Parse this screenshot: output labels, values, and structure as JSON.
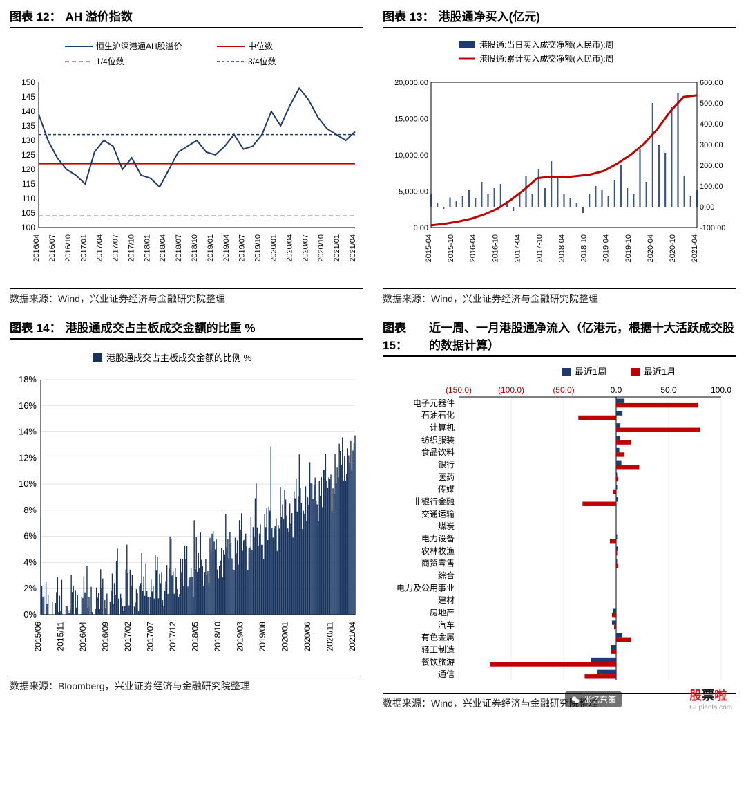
{
  "chart12": {
    "title_prefix": "图表 12：",
    "title": "AH 溢价指数",
    "source": "数据来源：Wind，兴业证券经济与金融研究院整理",
    "legend": {
      "series": "恒生沪深港通AH股溢价",
      "median": "中位数",
      "q1": "1/4位数",
      "q3": "3/4位数"
    },
    "colors": {
      "series": "#1f3a6e",
      "median": "#c00000",
      "q1": "#7f7f7f",
      "q3": "#1f3a6e",
      "axis": "#000000",
      "grid": "#bfbfbf"
    },
    "ylim": [
      100,
      150
    ],
    "ytick_step": 5,
    "median_value": 122,
    "q1_value": 104,
    "q3_value": 132,
    "x_labels": [
      "2016/04",
      "2016/07",
      "2016/10",
      "2017/01",
      "2017/04",
      "2017/07",
      "2017/10",
      "2018/01",
      "2018/04",
      "2018/07",
      "2018/10",
      "2019/01",
      "2019/04",
      "2019/07",
      "2019/10",
      "2020/01",
      "2020/04",
      "2020/07",
      "2020/10",
      "2021/01",
      "2021/04"
    ],
    "series_values": [
      139,
      130,
      124,
      120,
      118,
      115,
      126,
      130,
      128,
      120,
      124,
      118,
      117,
      114,
      120,
      126,
      128,
      130,
      126,
      125,
      128,
      132,
      127,
      128,
      132,
      140,
      135,
      142,
      148,
      144,
      138,
      134,
      132,
      130,
      133
    ]
  },
  "chart13": {
    "title_prefix": "图表 13：",
    "title": "港股通净买入(亿元)",
    "source": "数据来源：Wind，兴业证券经济与金融研究院整理",
    "legend": {
      "bars": "港股通:当日买入成交净额(人民币):周",
      "line": "港股通:累计买入成交净额(人民币):周"
    },
    "colors": {
      "bars": "#1f3a6e",
      "line": "#c00000",
      "axis": "#000000"
    },
    "left_ylim": [
      0,
      20000
    ],
    "left_ticks": [
      "0.00",
      "5,000.00",
      "10,000.00",
      "15,000.00",
      "20,000.00"
    ],
    "right_ylim": [
      -100,
      600
    ],
    "right_ticks": [
      "-100.00",
      "0.00",
      "100.00",
      "200.00",
      "300.00",
      "400.00",
      "500.00",
      "600.00"
    ],
    "x_labels": [
      "2015-04",
      "2015-10",
      "2016-04",
      "2016-10",
      "2017-04",
      "2017-10",
      "2018-04",
      "2018-10",
      "2019-04",
      "2019-10",
      "2020-04",
      "2020-10",
      "2021-04"
    ],
    "cumulative": [
      300,
      500,
      800,
      1200,
      1800,
      2600,
      3800,
      5200,
      6800,
      7000,
      6900,
      7100,
      7300,
      7800,
      8800,
      10000,
      11500,
      13500,
      16000,
      18000,
      18200
    ],
    "weekly": [
      60,
      20,
      -10,
      45,
      30,
      50,
      80,
      40,
      120,
      60,
      90,
      110,
      30,
      -20,
      70,
      150,
      60,
      180,
      90,
      220,
      140,
      60,
      40,
      20,
      -30,
      60,
      100,
      80,
      50,
      130,
      200,
      90,
      60,
      280,
      120,
      500,
      300,
      260,
      480,
      550,
      150,
      50,
      80
    ]
  },
  "chart14": {
    "title_prefix": "图表 14：",
    "title": "港股通成交占主板成交金额的比重  %",
    "source": "数据来源：Bloomberg，兴业证券经济与金融研究院整理",
    "legend": "港股通成交占主板成交金额的比例 %",
    "colors": {
      "bars": "#17335e",
      "axis": "#000000"
    },
    "ylim": [
      0,
      18
    ],
    "ytick_step": 2,
    "x_labels": [
      "2015/06",
      "2015/11",
      "2016/04",
      "2016/09",
      "2017/02",
      "2017/07",
      "2017/12",
      "2018/05",
      "2018/10",
      "2019/03",
      "2019/08",
      "2020/01",
      "2020/06",
      "2020/11",
      "2021/04"
    ]
  },
  "chart15": {
    "title_prefix": "图表 15：",
    "title": "近一周、一月港股通净流入（亿港元，根据十大活跃成交股的数据计算）",
    "source": "数据来源：Wind，兴业证券经济与金融研究院整理",
    "legend": {
      "week": "最近1周",
      "month": "最近1月"
    },
    "colors": {
      "week": "#1f3a6e",
      "month": "#c00000",
      "neg_axis_label": "#c00000"
    },
    "xlim": [
      -150,
      100
    ],
    "xticks_neg": [
      "(150.0)",
      "(100.0)",
      "(50.0)"
    ],
    "xticks_pos": [
      "0.0",
      "50.0",
      "100.0"
    ],
    "categories": [
      "电子元器件",
      "石油石化",
      "计算机",
      "纺织服装",
      "食品饮料",
      "银行",
      "医药",
      "传媒",
      "非银行金融",
      "交通运输",
      "煤炭",
      "电力设备",
      "农林牧渔",
      "商贸零售",
      "综合",
      "电力及公用事业",
      "建材",
      "房地产",
      "汽车",
      "有色金属",
      "轻工制造",
      "餐饮旅游",
      "通信"
    ],
    "week_values": [
      8,
      6,
      4,
      4,
      3,
      5,
      1,
      1,
      2,
      0,
      0,
      1,
      2,
      1,
      0,
      0,
      0,
      -3,
      -4,
      6,
      -5,
      -24,
      -18
    ],
    "month_values": [
      78,
      -36,
      80,
      14,
      8,
      22,
      2,
      -3,
      -32,
      0,
      0,
      -6,
      1,
      2,
      0,
      0,
      0,
      -4,
      -2,
      14,
      -5,
      -120,
      -30
    ]
  },
  "watermark": {
    "main1": "股",
    "main2": "票",
    "main3": "啦",
    "sub": "Gupiaola.com"
  },
  "wechat": "张忆东策"
}
